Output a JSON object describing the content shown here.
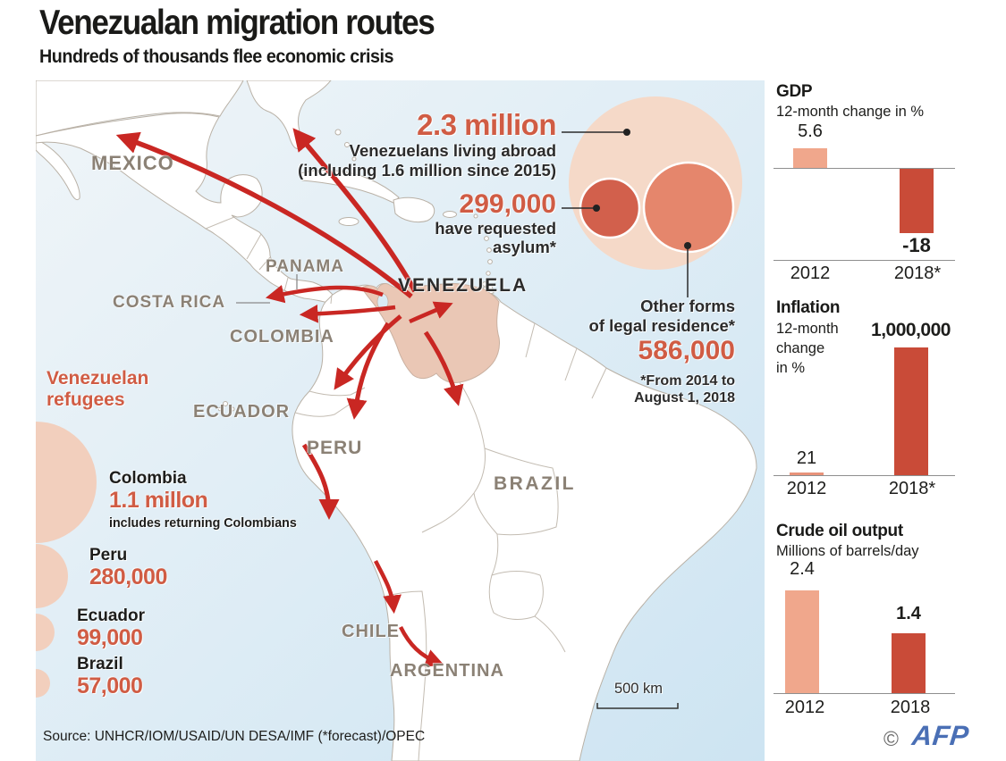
{
  "colors": {
    "accent_red": "#d05c44",
    "arrow_red": "#c92723",
    "bar_light": "#f0a78c",
    "bar_dark": "#c94b38",
    "map_label_gray": "#8b8175",
    "venezuela_fill": "#eac7b5",
    "bubble_outer": "#f5d9c8",
    "bubble_mid": "#e5866c",
    "bubble_dark": "#d2604c",
    "semicircle_fill": "#f2cfbd",
    "ocean_light": "#eff5f8",
    "ocean_dark": "#cde4f2",
    "afp_blue": "#4a6fb5"
  },
  "header": {
    "title": "Venezualan migration routes",
    "subtitle": "Hundreds of thousands flee economic crisis"
  },
  "map_labels": {
    "mexico": "MEXICO",
    "panama": "PANAMA",
    "costa_rica": "COSTA RICA",
    "venezuela": "VENEZUELA",
    "colombia": "COLOMBIA",
    "ecuador": "ECUADOR",
    "peru": "PERU",
    "brazil": "BRAZIL",
    "chile": "CHILE",
    "argentina": "ARGENTINA"
  },
  "callouts": {
    "abroad": {
      "value": "2.3 million",
      "line1": "Venezuelans living abroad",
      "line2": "(including 1.6 million since 2015)"
    },
    "asylum": {
      "value": "299,000",
      "line1": "have requested",
      "line2": "asylum*"
    },
    "residence": {
      "line1": "Other forms",
      "line2": "of legal residence*",
      "value": "586,000",
      "footnote1": "*From 2014 to",
      "footnote2": "August 1, 2018"
    }
  },
  "refugees_legend": {
    "title_line1": "Venezuelan",
    "title_line2": "refugees",
    "items": [
      {
        "country": "Colombia",
        "value": "1.1 millon",
        "note": "includes returning Colombians"
      },
      {
        "country": "Peru",
        "value": "280,000"
      },
      {
        "country": "Ecuador",
        "value": "99,000"
      },
      {
        "country": "Brazil",
        "value": "57,000"
      }
    ]
  },
  "scale_bar": {
    "label": "500 km"
  },
  "source": {
    "text": "Source: UNHCR/IOM/USAID/UN DESA/IMF (*forecast)/OPEC"
  },
  "footer": {
    "copyright": "©",
    "logo": "AFP"
  },
  "chart_data": [
    {
      "type": "bar",
      "title": "GDP",
      "subtitle": "12-month change in %",
      "categories": [
        "2012",
        "2018*"
      ],
      "values": [
        5.6,
        -18
      ],
      "value_labels": [
        "5.6",
        "-18"
      ],
      "ylabel": "",
      "xlabel": "",
      "bar_colors": [
        "#f0a78c",
        "#c94b38"
      ]
    },
    {
      "type": "bar",
      "title": "Inflation",
      "subtitle_lines": [
        "12-month",
        "change",
        "in %"
      ],
      "categories": [
        "2012",
        "2018*"
      ],
      "values": [
        21,
        1000000
      ],
      "value_labels": [
        "21",
        "1,000,000"
      ],
      "ylabel": "",
      "xlabel": "",
      "bar_colors": [
        "#e8937a",
        "#cc4f3b"
      ]
    },
    {
      "type": "bar",
      "title": "Crude oil output",
      "subtitle": "Millions of barrels/day",
      "categories": [
        "2012",
        "2018"
      ],
      "values": [
        2.4,
        1.4
      ],
      "value_labels": [
        "2.4",
        "1.4"
      ],
      "ylabel": "",
      "xlabel": "",
      "bar_colors": [
        "#f0a78c",
        "#c94b38"
      ]
    },
    {
      "type": "circles",
      "title": "Venezuelans living abroad",
      "bubbles": [
        {
          "label": "Venezuelans living abroad (including 1.6 million since 2015)",
          "value": 2300000
        },
        {
          "label": "have requested asylum",
          "value": 299000
        },
        {
          "label": "other forms of legal residence",
          "value": 586000
        }
      ]
    },
    {
      "type": "circles",
      "title": "Venezuelan refugees",
      "bubbles": [
        {
          "label": "Colombia",
          "value": 1100000
        },
        {
          "label": "Peru",
          "value": 280000
        },
        {
          "label": "Ecuador",
          "value": 99000
        },
        {
          "label": "Brazil",
          "value": 57000
        }
      ]
    }
  ]
}
